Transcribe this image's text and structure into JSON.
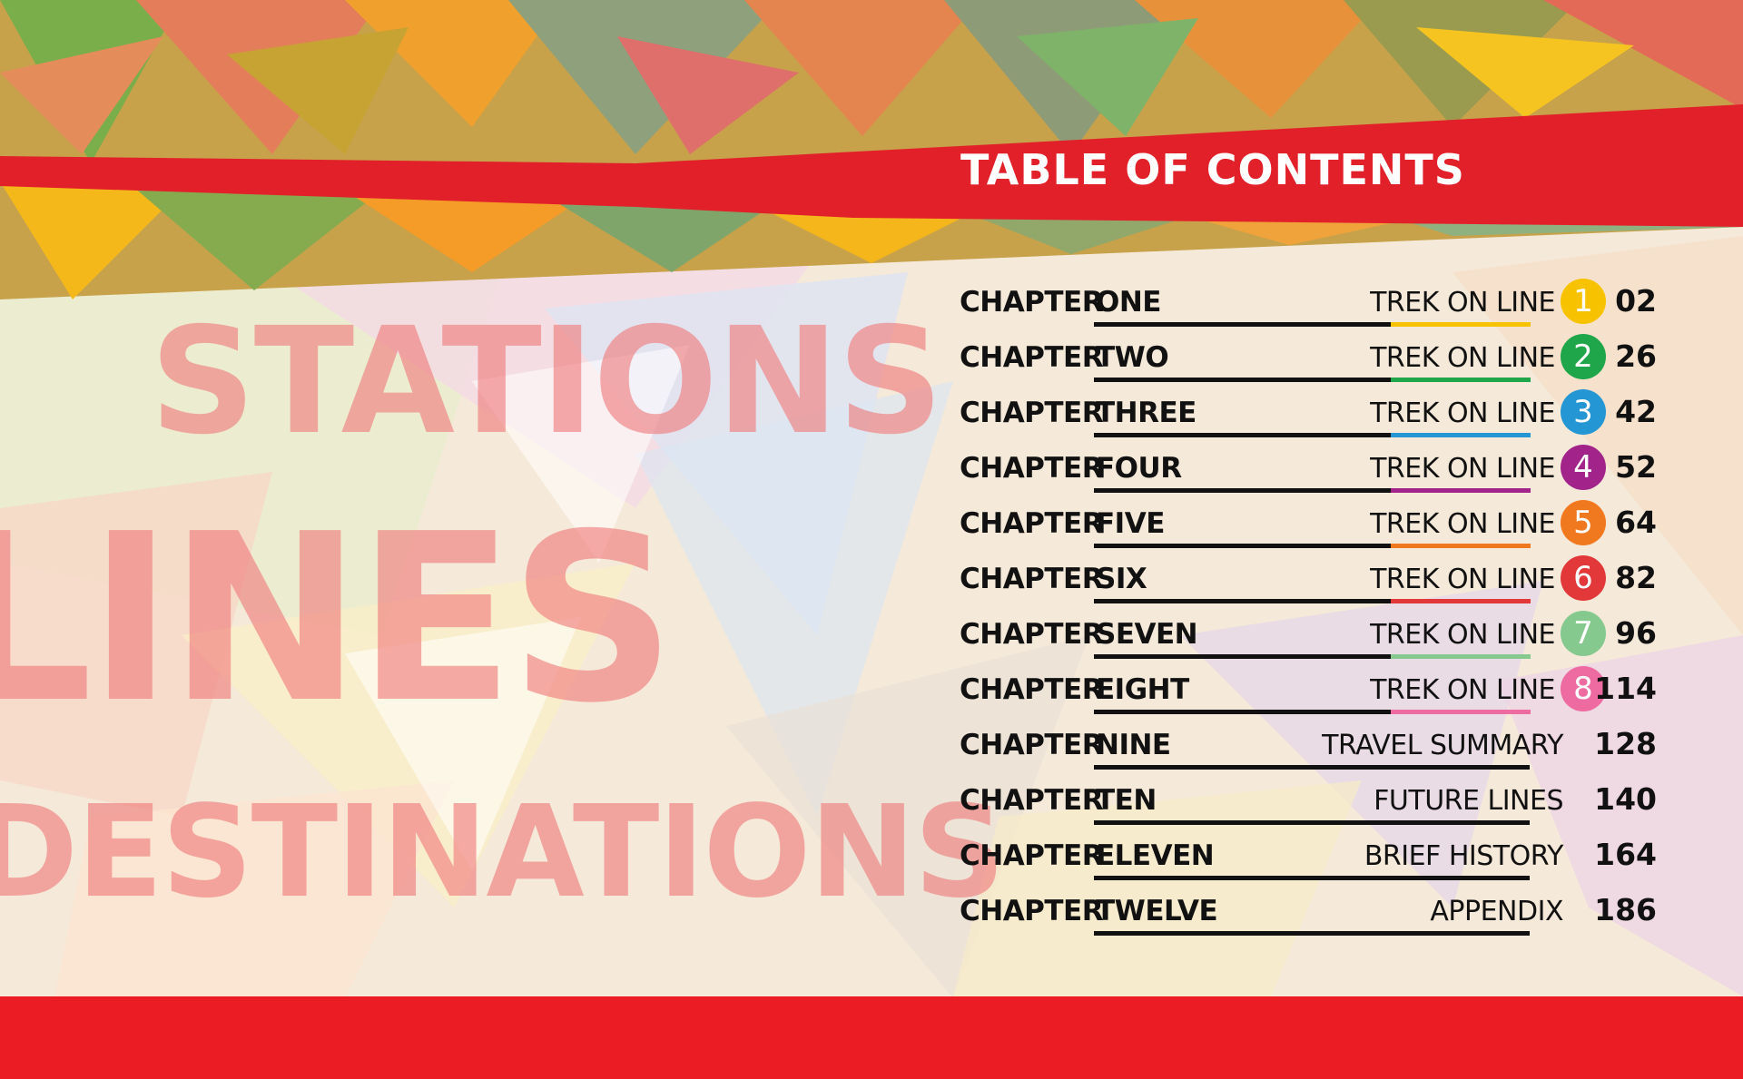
{
  "header": {
    "title": "TABLE OF CONTENTS"
  },
  "background_words": {
    "stations": "STATIONS",
    "lines": "LINES",
    "destinations": "DESTINATIONS"
  },
  "colors": {
    "red_band": "#e2202a",
    "bottom_bar": "#ec1c24"
  },
  "toc": [
    {
      "lead": "CHAPTER",
      "name": "ONE",
      "section": "TREK ON LINE",
      "line": "1",
      "color": "#f7c300",
      "page": "02"
    },
    {
      "lead": "CHAPTER",
      "name": "TWO",
      "section": "TREK ON LINE",
      "line": "2",
      "color": "#1fa64a",
      "page": "26"
    },
    {
      "lead": "CHAPTER",
      "name": "THREE",
      "section": "TREK ON LINE",
      "line": "3",
      "color": "#2496d4",
      "page": "42"
    },
    {
      "lead": "CHAPTER",
      "name": "FOUR",
      "section": "TREK ON LINE",
      "line": "4",
      "color": "#a2248a",
      "page": "52"
    },
    {
      "lead": "CHAPTER",
      "name": "FIVE",
      "section": "TREK ON LINE",
      "line": "5",
      "color": "#f0791f",
      "page": "64"
    },
    {
      "lead": "CHAPTER",
      "name": "SIX",
      "section": "TREK ON LINE",
      "line": "6",
      "color": "#e2383a",
      "page": "82"
    },
    {
      "lead": "CHAPTER",
      "name": "SEVEN",
      "section": "TREK ON LINE",
      "line": "7",
      "color": "#86c98e",
      "page": "96"
    },
    {
      "lead": "CHAPTER",
      "name": "EIGHT",
      "section": "TREK ON LINE",
      "line": "8",
      "color": "#ee6ba2",
      "page": "114"
    },
    {
      "lead": "CHAPTER",
      "name": "NINE",
      "section": "TRAVEL SUMMARY",
      "line": "",
      "color": "",
      "page": "128"
    },
    {
      "lead": "CHAPTER",
      "name": "TEN",
      "section": "FUTURE LINES",
      "line": "",
      "color": "",
      "page": "140"
    },
    {
      "lead": "CHAPTER",
      "name": "ELEVEN",
      "section": "BRIEF HISTORY",
      "line": "",
      "color": "",
      "page": "164"
    },
    {
      "lead": "CHAPTER",
      "name": "TWELVE",
      "section": "APPENDIX",
      "line": "",
      "color": "",
      "page": "186"
    }
  ]
}
